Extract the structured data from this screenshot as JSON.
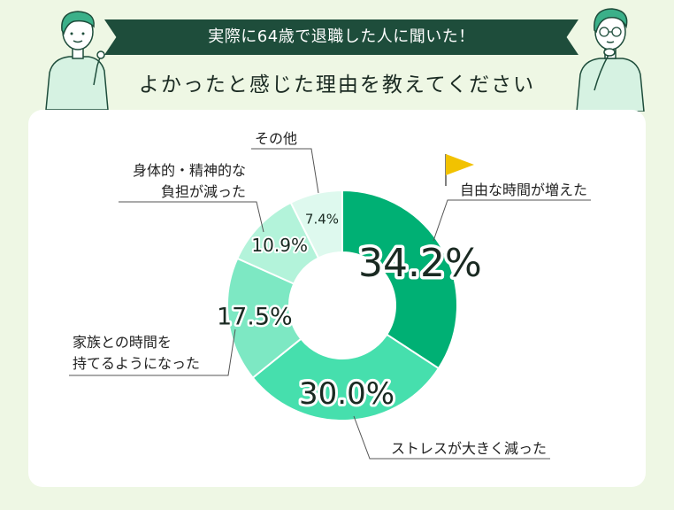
{
  "header": {
    "banner": "実際に64歳で退職した人に聞いた！",
    "subtitle": "よかったと感じた理由を教えてください"
  },
  "colors": {
    "accent": "#00b074",
    "banner_bg": "#1e4d3b",
    "flag": "#f2c200"
  },
  "chart_data": {
    "type": "pie",
    "donut": true,
    "categories": [
      "自由な時間が増えた",
      "ストレスが大きく減った",
      "家族との時間を持てるようになった",
      "身体的・精神的な負担が減った",
      "その他"
    ],
    "values": [
      34.2,
      30.0,
      17.5,
      10.9,
      7.4
    ],
    "value_labels": [
      "34.2%",
      "30.0%",
      "17.5%",
      "10.9%",
      "7.4%"
    ],
    "label_lines": [
      [
        "自由な時間が増えた"
      ],
      [
        "ストレスが大きく減った"
      ],
      [
        "家族との時間を",
        "持てるようになった"
      ],
      [
        "身体的・精神的な",
        "負担が減った"
      ],
      [
        "その他"
      ]
    ],
    "colors": [
      "#00b074",
      "#46dfad",
      "#7de8c3",
      "#b3f3da",
      "#def9ee"
    ],
    "highlight": "自由な時間が増えた"
  }
}
